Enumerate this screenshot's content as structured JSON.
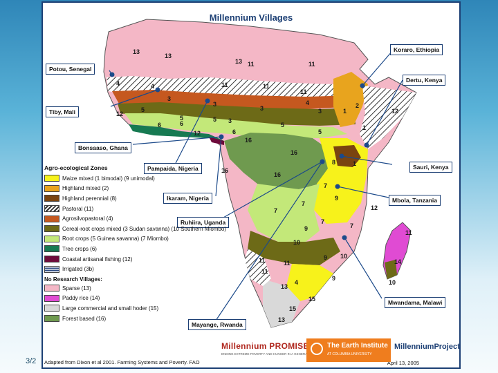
{
  "slide_date": "3/2",
  "title": "Millennium Villages",
  "villages": [
    {
      "name": "Koraro, Ethiopia"
    },
    {
      "name": "Potou, Senegal"
    },
    {
      "name": "Dertu, Kenya"
    },
    {
      "name": "Tiby, Mali"
    },
    {
      "name": "Bonsaaso, Ghana"
    },
    {
      "name": "Pampaida, Nigeria"
    },
    {
      "name": "Sauri, Kenya"
    },
    {
      "name": "Ikaram, Nigeria"
    },
    {
      "name": "Mbola, Tanzania"
    },
    {
      "name": "Ruhiira, Uganda"
    },
    {
      "name": "Mwandama, Malawi"
    },
    {
      "name": "Mayange, Rwanda"
    }
  ],
  "legend": {
    "title": "Agro-ecological Zones",
    "items": [
      {
        "label": "Maize mixed (1 bimodal) (9 unimodal)",
        "color": "#f7f21b"
      },
      {
        "label": "Highland mixed (2)",
        "color": "#e8a41e"
      },
      {
        "label": "Highland perennial (8)",
        "color": "#7a4410"
      },
      {
        "label": "Pastoral (11)",
        "color": "hatch"
      },
      {
        "label": "Agrosilvopastoral (4)",
        "color": "#c5581f"
      },
      {
        "label": "Cereal-root crops mixed (3 Sudan savanna) (10 Southern Miombo)",
        "color": "#6d6a17"
      },
      {
        "label": "Root crops (5 Guinea savanna) (7 Miombo)",
        "color": "#c3e879"
      },
      {
        "label": "Tree crops (6)",
        "color": "#177a52"
      },
      {
        "label": "Coastal artisanal fishing (12)",
        "color": "#6e0b3b"
      },
      {
        "label": "Irrigated (3b)",
        "color": "stripe"
      }
    ],
    "no_villages_title": "No Research Villages:",
    "no_villages_items": [
      {
        "label": "Sparse (13)",
        "color": "#f4b7c6"
      },
      {
        "label": "Paddy rice (14)",
        "color": "#e04bd3"
      },
      {
        "label": "Large commercial and small hoder (15)",
        "color": "#d9d9d9"
      },
      {
        "label": "Forest based (16)",
        "color": "#6f9a4f"
      }
    ]
  },
  "zone_numbers": [
    "13",
    "13",
    "13",
    "4",
    "4",
    "11",
    "11",
    "11",
    "11",
    "11",
    "3",
    "3",
    "3",
    "3",
    "3",
    "4",
    "1",
    "2",
    "1",
    "5",
    "5",
    "5",
    "5",
    "6",
    "6",
    "6",
    "12",
    "5",
    "16",
    "16",
    "16",
    "16",
    "8",
    "8",
    "1",
    "7",
    "7",
    "7",
    "7",
    "7",
    "9",
    "9",
    "9",
    "9",
    "10",
    "10",
    "10",
    "11",
    "11",
    "11",
    "13",
    "4",
    "15",
    "15",
    "13",
    "12",
    "12",
    "14",
    "10",
    "11"
  ],
  "source": "Adapted from Dixon et al 2001.  Farming Systems and Poverty. FAO",
  "date": "April 13, 2005",
  "logos": {
    "promise": "Millennium PROMISE",
    "promise_sub": "ENDING EXTREME POVERTY AND HUNGER IN A GENERATION",
    "earth_institute": "The Earth Institute",
    "earth_institute_sub": "AT COLUMBIA UNIVERSITY",
    "millennium_project": "MillenniumProject"
  },
  "colors": {
    "frame_border": "#1c3f74",
    "callout_line": "#1c4a8a"
  }
}
